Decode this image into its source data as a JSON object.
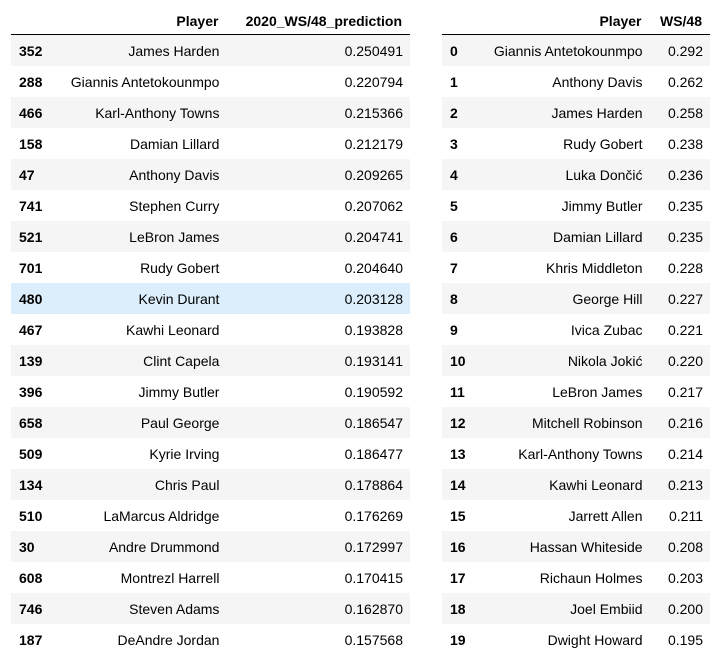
{
  "left_table": {
    "columns": [
      "",
      "Player",
      "2020_WS/48_prediction"
    ],
    "highlight_row": 8,
    "rows": [
      [
        "352",
        "James Harden",
        "0.250491"
      ],
      [
        "288",
        "Giannis Antetokounmpo",
        "0.220794"
      ],
      [
        "466",
        "Karl-Anthony Towns",
        "0.215366"
      ],
      [
        "158",
        "Damian Lillard",
        "0.212179"
      ],
      [
        "47",
        "Anthony Davis",
        "0.209265"
      ],
      [
        "741",
        "Stephen Curry",
        "0.207062"
      ],
      [
        "521",
        "LeBron James",
        "0.204741"
      ],
      [
        "701",
        "Rudy Gobert",
        "0.204640"
      ],
      [
        "480",
        "Kevin Durant",
        "0.203128"
      ],
      [
        "467",
        "Kawhi Leonard",
        "0.193828"
      ],
      [
        "139",
        "Clint Capela",
        "0.193141"
      ],
      [
        "396",
        "Jimmy Butler",
        "0.190592"
      ],
      [
        "658",
        "Paul George",
        "0.186547"
      ],
      [
        "509",
        "Kyrie Irving",
        "0.186477"
      ],
      [
        "134",
        "Chris Paul",
        "0.178864"
      ],
      [
        "510",
        "LaMarcus Aldridge",
        "0.176269"
      ],
      [
        "30",
        "Andre Drummond",
        "0.172997"
      ],
      [
        "608",
        "Montrezl Harrell",
        "0.170415"
      ],
      [
        "746",
        "Steven Adams",
        "0.162870"
      ],
      [
        "187",
        "DeAndre Jordan",
        "0.157568"
      ]
    ]
  },
  "right_table": {
    "columns": [
      "",
      "Player",
      "WS/48"
    ],
    "rows": [
      [
        "0",
        "Giannis Antetokounmpo",
        "0.292"
      ],
      [
        "1",
        "Anthony Davis",
        "0.262"
      ],
      [
        "2",
        "James Harden",
        "0.258"
      ],
      [
        "3",
        "Rudy Gobert",
        "0.238"
      ],
      [
        "4",
        "Luka Dončić",
        "0.236"
      ],
      [
        "5",
        "Jimmy Butler",
        "0.235"
      ],
      [
        "6",
        "Damian Lillard",
        "0.235"
      ],
      [
        "7",
        "Khris Middleton",
        "0.228"
      ],
      [
        "8",
        "George Hill",
        "0.227"
      ],
      [
        "9",
        "Ivica Zubac",
        "0.221"
      ],
      [
        "10",
        "Nikola Jokić",
        "0.220"
      ],
      [
        "11",
        "LeBron James",
        "0.217"
      ],
      [
        "12",
        "Mitchell Robinson",
        "0.216"
      ],
      [
        "13",
        "Karl-Anthony Towns",
        "0.214"
      ],
      [
        "14",
        "Kawhi Leonard",
        "0.213"
      ],
      [
        "15",
        "Jarrett Allen",
        "0.211"
      ],
      [
        "16",
        "Hassan Whiteside",
        "0.208"
      ],
      [
        "17",
        "Richaun Holmes",
        "0.203"
      ],
      [
        "18",
        "Joel Embiid",
        "0.200"
      ],
      [
        "19",
        "Dwight Howard",
        "0.195"
      ]
    ]
  }
}
